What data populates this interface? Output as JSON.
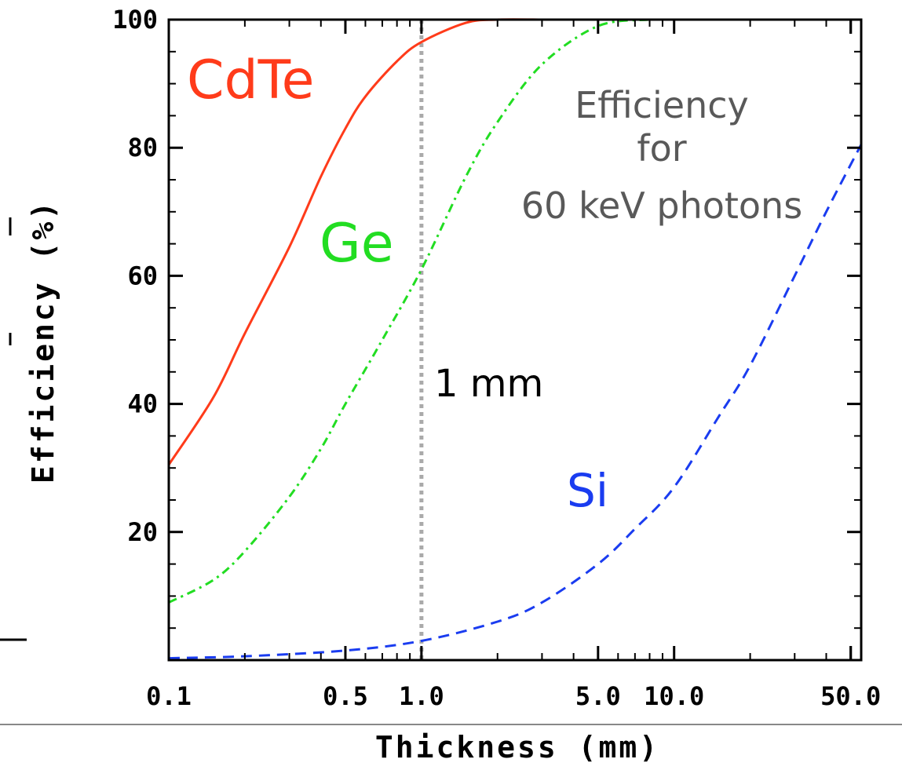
{
  "chart_data": {
    "type": "line",
    "xlabel": "Thickness (mm)",
    "ylabel": "Efficiency (%)",
    "x_scale": "log",
    "xlim": [
      0.1,
      55
    ],
    "ylim": [
      0,
      100
    ],
    "x_ticks": [
      {
        "value": 0.1,
        "label": "0.1"
      },
      {
        "value": 0.5,
        "label": "0.5"
      },
      {
        "value": 1.0,
        "label": "1.0"
      },
      {
        "value": 5.0,
        "label": "5.0"
      },
      {
        "value": 10.0,
        "label": "10.0"
      },
      {
        "value": 50.0,
        "label": "50.0"
      }
    ],
    "y_ticks": [
      {
        "value": 20,
        "label": "20"
      },
      {
        "value": 40,
        "label": "40"
      },
      {
        "value": 60,
        "label": "60"
      },
      {
        "value": 80,
        "label": "80"
      },
      {
        "value": 100,
        "label": "100"
      }
    ],
    "series": [
      {
        "name": "CdTe",
        "color": "#ff3b1a",
        "dash": "solid",
        "x": [
          0.1,
          0.15,
          0.2,
          0.3,
          0.4,
          0.5,
          0.6,
          0.8,
          1.0,
          1.5,
          2.0,
          3.0
        ],
        "y": [
          30.5,
          41,
          51,
          64.5,
          75.5,
          83,
          88,
          93.5,
          96.5,
          99.5,
          100,
          100
        ]
      },
      {
        "name": "Ge",
        "color": "#22dd22",
        "dash": "dash-dot",
        "x": [
          0.1,
          0.15,
          0.2,
          0.3,
          0.4,
          0.5,
          0.7,
          1.0,
          1.5,
          2.0,
          3.0,
          5.0,
          8.0
        ],
        "y": [
          9,
          12.5,
          17,
          25.5,
          33,
          40,
          50,
          61,
          75.5,
          84,
          93,
          99,
          100
        ]
      },
      {
        "name": "Si",
        "color": "#1a3cf0",
        "dash": "dashed",
        "x": [
          0.1,
          0.2,
          0.5,
          1.0,
          2.0,
          3.0,
          5.0,
          7.0,
          10.0,
          15.0,
          20.0,
          30.0,
          40.0,
          55.0
        ],
        "y": [
          0.3,
          0.6,
          1.5,
          3,
          6,
          9,
          15,
          20.5,
          27,
          38,
          46,
          60,
          70,
          80.5
        ]
      }
    ],
    "reference_line": {
      "x": 1.0,
      "color": "#aaaaaa",
      "label": "1 mm"
    },
    "annotations": [
      {
        "text": "CdTe",
        "color": "#ff3b1a"
      },
      {
        "text": "Ge",
        "color": "#22dd22"
      },
      {
        "text": "Si",
        "color": "#1a3cf0"
      },
      {
        "text": "1 mm",
        "color": "#000000"
      },
      {
        "lines": [
          "Efficiency",
          "for",
          "60 keV photons"
        ],
        "color": "#595959"
      }
    ]
  }
}
